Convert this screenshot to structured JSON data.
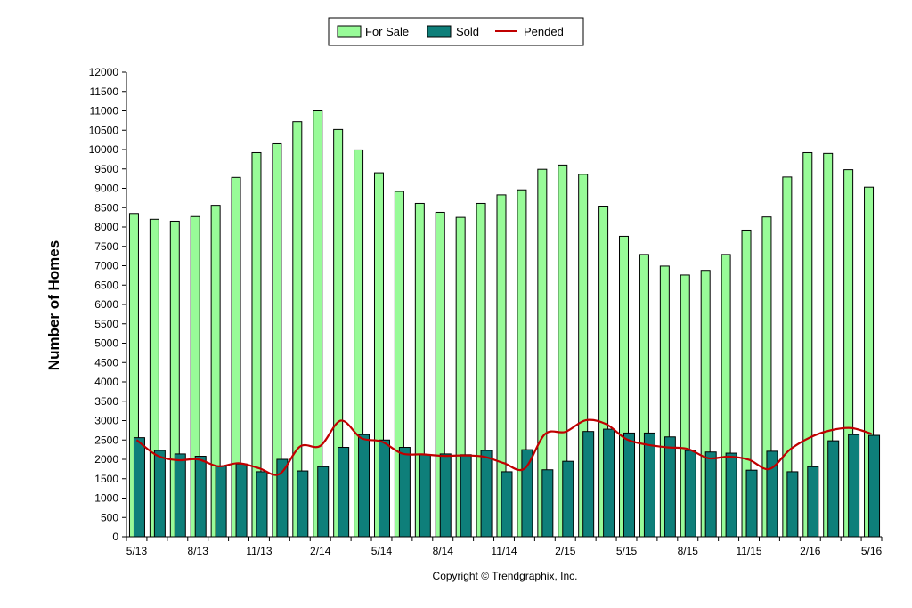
{
  "chart_data": {
    "type": "bar",
    "ylabel": "Number of Homes",
    "ylim": [
      0,
      12000
    ],
    "ytick_step": 500,
    "categories": [
      "5/13",
      "6/13",
      "7/13",
      "8/13",
      "9/13",
      "10/13",
      "11/13",
      "12/13",
      "1/14",
      "2/14",
      "3/14",
      "4/14",
      "5/14",
      "6/14",
      "7/14",
      "8/14",
      "9/14",
      "10/14",
      "11/14",
      "12/14",
      "1/15",
      "2/15",
      "3/15",
      "4/15",
      "5/15",
      "6/15",
      "7/15",
      "8/15",
      "9/15",
      "10/15",
      "11/15",
      "12/15",
      "1/16",
      "2/16",
      "3/16",
      "4/16",
      "5/16"
    ],
    "xtick_labels": [
      "5/13",
      "8/13",
      "11/13",
      "2/14",
      "5/14",
      "8/14",
      "11/14",
      "2/15",
      "5/15",
      "8/15",
      "11/15",
      "2/16",
      "5/16"
    ],
    "series": [
      {
        "name": "For Sale",
        "kind": "bar",
        "color": "#98fb98",
        "values": [
          8350,
          8200,
          8150,
          8270,
          8560,
          9280,
          9920,
          10150,
          10720,
          11000,
          10520,
          9990,
          9400,
          8920,
          8610,
          8380,
          8250,
          8610,
          8830,
          8960,
          9490,
          9600,
          9360,
          8540,
          7760,
          7290,
          6990,
          6760,
          6880,
          7290,
          7920,
          8260,
          9290,
          9920,
          9900,
          9480,
          9030
        ]
      },
      {
        "name": "Sold",
        "kind": "bar",
        "color": "#0e7f7a",
        "values": [
          2560,
          2230,
          2140,
          2080,
          1830,
          1880,
          1680,
          2000,
          1700,
          1810,
          2310,
          2640,
          2500,
          2310,
          2120,
          2140,
          2120,
          2230,
          1680,
          2250,
          1730,
          1950,
          2720,
          2780,
          2680,
          2680,
          2580,
          2230,
          2190,
          2160,
          1720,
          2210,
          1680,
          1810,
          2480,
          2640,
          2620
        ]
      },
      {
        "name": "Pended",
        "kind": "line",
        "color": "#c00000",
        "values": [
          2500,
          2100,
          1980,
          2000,
          1820,
          1900,
          1770,
          1620,
          2330,
          2350,
          3000,
          2550,
          2460,
          2150,
          2130,
          2090,
          2100,
          2070,
          1900,
          1760,
          2650,
          2710,
          3010,
          2910,
          2520,
          2380,
          2310,
          2270,
          2030,
          2070,
          1990,
          1750,
          2250,
          2570,
          2750,
          2810,
          2660
        ]
      }
    ],
    "legend_position": "top-center",
    "grid": false
  },
  "footer": {
    "copyright": "Copyright © Trendgraphix, Inc."
  }
}
